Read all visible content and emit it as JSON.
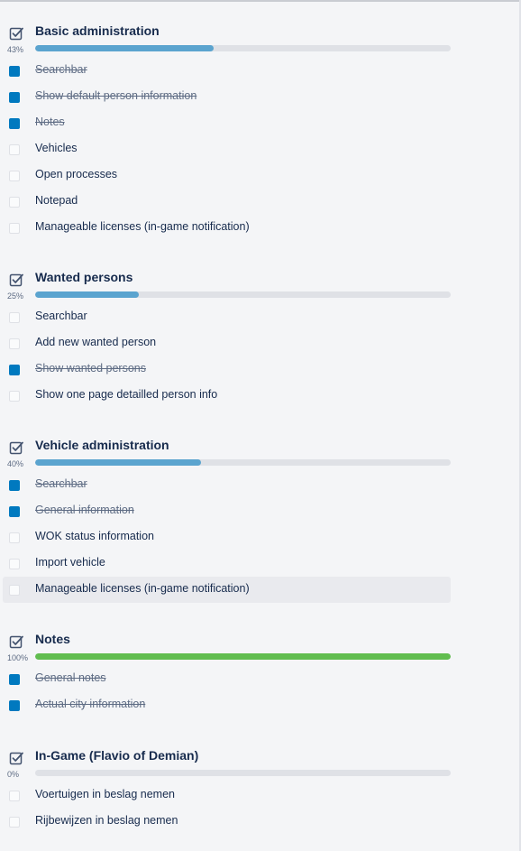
{
  "checklists": [
    {
      "title": "Basic administration",
      "percent_label": "43%",
      "progress": 43,
      "complete": false,
      "items": [
        {
          "label": "Searchbar",
          "checked": true
        },
        {
          "label": "Show default person information",
          "checked": true
        },
        {
          "label": "Notes",
          "checked": true
        },
        {
          "label": "Vehicles",
          "checked": false
        },
        {
          "label": "Open processes",
          "checked": false
        },
        {
          "label": "Notepad",
          "checked": false
        },
        {
          "label": "Manageable licenses (in-game notification)",
          "checked": false
        }
      ]
    },
    {
      "title": "Wanted persons",
      "percent_label": "25%",
      "progress": 25,
      "complete": false,
      "items": [
        {
          "label": "Searchbar",
          "checked": false
        },
        {
          "label": "Add new wanted person",
          "checked": false
        },
        {
          "label": "Show wanted persons",
          "checked": true
        },
        {
          "label": "Show one page detailled person info",
          "checked": false
        }
      ]
    },
    {
      "title": "Vehicle administration",
      "percent_label": "40%",
      "progress": 40,
      "complete": false,
      "items": [
        {
          "label": "Searchbar",
          "checked": true
        },
        {
          "label": "General information",
          "checked": true
        },
        {
          "label": "WOK status information",
          "checked": false
        },
        {
          "label": "Import vehicle",
          "checked": false
        },
        {
          "label": "Manageable licenses (in-game notification)",
          "checked": false,
          "hovered": true
        }
      ]
    },
    {
      "title": "Notes",
      "percent_label": "100%",
      "progress": 100,
      "complete": true,
      "items": [
        {
          "label": "General notes",
          "checked": true
        },
        {
          "label": "Actual city information",
          "checked": true
        }
      ]
    },
    {
      "title": "In-Game (Flavio of Demian)",
      "percent_label": "0%",
      "progress": 0,
      "complete": false,
      "items": [
        {
          "label": "Voertuigen in beslag nemen",
          "checked": false
        },
        {
          "label": "Rijbewijzen in beslag nemen",
          "checked": false
        }
      ]
    }
  ],
  "colors": {
    "progress_fill": "#5ba4cf",
    "progress_complete": "#61bd4f",
    "checkbox_checked": "#0079bf",
    "text": "#172b4d"
  },
  "icons": {
    "checklist_header": "checklist-icon"
  }
}
